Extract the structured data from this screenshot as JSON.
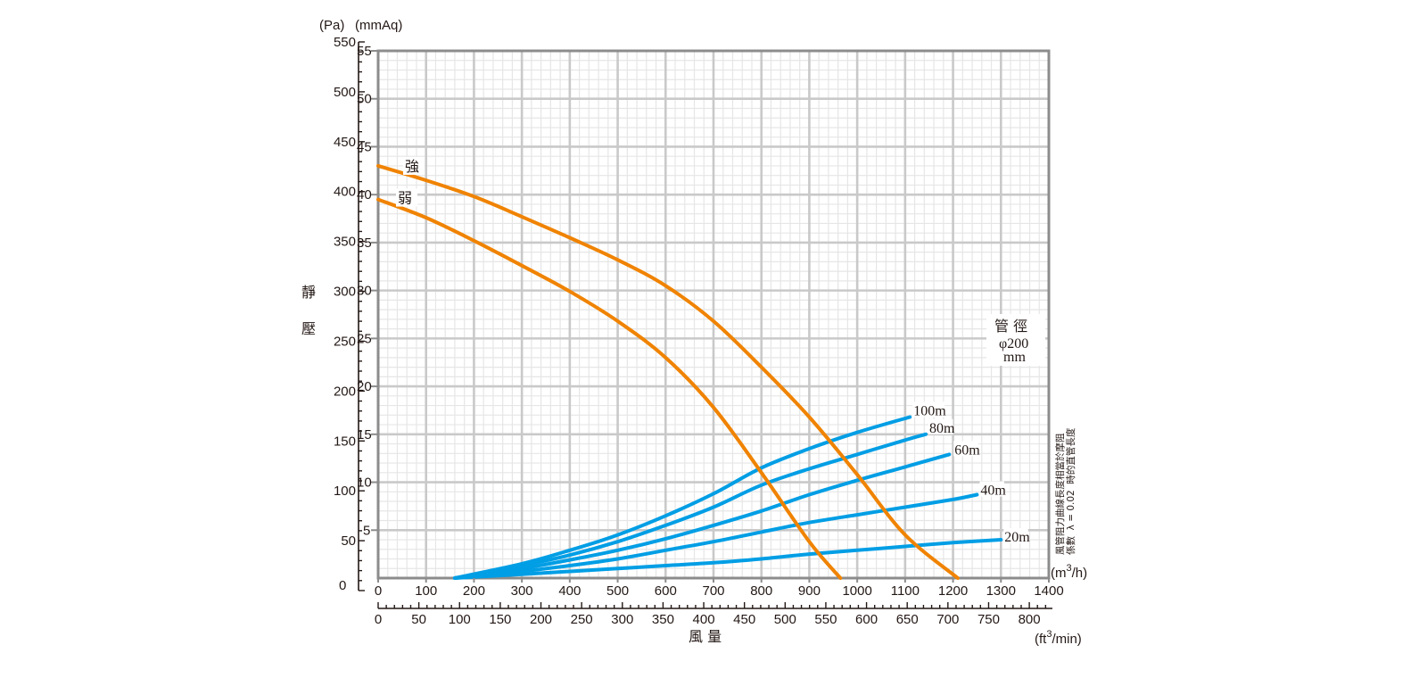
{
  "chart_data": {
    "type": "line",
    "title": "",
    "xlabel": "風 量",
    "ylabel": "靜 壓",
    "x_unit": "(m³/h)",
    "x2_unit": "(ft³/min)",
    "y_unit": "(mmAq)",
    "y2_unit": "(Pa)",
    "xlim": [
      0,
      1400
    ],
    "ylim": [
      0,
      55
    ],
    "x2lim": [
      0,
      824
    ],
    "y2lim": [
      0,
      550
    ],
    "grid": true,
    "x_ticks": [
      "0",
      "100",
      "200",
      "300",
      "400",
      "500",
      "600",
      "700",
      "800",
      "900",
      "1000",
      "1100",
      "1200",
      "1300",
      "1400"
    ],
    "x2_ticks": [
      "0",
      "50",
      "100",
      "150",
      "200",
      "250",
      "300",
      "350",
      "400",
      "450",
      "500",
      "550",
      "600",
      "650",
      "700",
      "750",
      "800"
    ],
    "y_ticks": [
      "0",
      "5",
      "10",
      "15",
      "20",
      "25",
      "30",
      "35",
      "40",
      "45",
      "50",
      "55"
    ],
    "y2_ticks": [
      "0",
      "50",
      "100",
      "150",
      "200",
      "250",
      "300",
      "350",
      "400",
      "450",
      "500",
      "550"
    ],
    "colors": {
      "fan_curve": "#f08300",
      "duct_curve": "#009ee5",
      "grid_major": "#c9c9c9",
      "grid_minor": "#e6e6e6",
      "frame": "#8c8c8c"
    },
    "fan_series": [
      {
        "name": "強",
        "x": [
          0,
          100,
          200,
          300,
          400,
          500,
          600,
          700,
          800,
          900,
          1000,
          1100,
          1210
        ],
        "y": [
          43.0,
          41.5,
          39.8,
          37.7,
          35.5,
          33.2,
          30.5,
          26.8,
          22.0,
          16.8,
          10.8,
          4.5,
          0
        ]
      },
      {
        "name": "弱",
        "x": [
          0,
          100,
          200,
          300,
          400,
          500,
          600,
          700,
          800,
          900,
          965
        ],
        "y": [
          39.5,
          37.6,
          35.2,
          32.6,
          29.9,
          26.8,
          23.0,
          17.8,
          11.0,
          3.8,
          0
        ]
      }
    ],
    "duct_series": [
      {
        "name": "100m",
        "x": [
          160,
          300,
          400,
          500,
          600,
          700,
          800,
          900,
          1000,
          1110
        ],
        "y": [
          0,
          1.5,
          2.9,
          4.5,
          6.5,
          8.8,
          11.5,
          13.5,
          15.2,
          16.8
        ]
      },
      {
        "name": "80m",
        "x": [
          160,
          300,
          400,
          500,
          600,
          700,
          800,
          900,
          1000,
          1100,
          1143
        ],
        "y": [
          0,
          1.3,
          2.4,
          3.8,
          5.5,
          7.4,
          9.7,
          11.4,
          12.9,
          14.4,
          15.0
        ]
      },
      {
        "name": "60m",
        "x": [
          160,
          300,
          400,
          500,
          600,
          700,
          800,
          900,
          1000,
          1100,
          1192
        ],
        "y": [
          0,
          1.0,
          1.9,
          2.9,
          4.1,
          5.5,
          7.0,
          8.7,
          10.2,
          11.6,
          12.9
        ]
      },
      {
        "name": "40m",
        "x": [
          160,
          300,
          400,
          500,
          600,
          700,
          800,
          900,
          1000,
          1100,
          1200,
          1250
        ],
        "y": [
          0,
          0.7,
          1.3,
          2.0,
          2.9,
          3.8,
          4.8,
          5.8,
          6.6,
          7.4,
          8.2,
          8.7
        ]
      },
      {
        "name": "20m",
        "x": [
          160,
          300,
          400,
          500,
          600,
          700,
          800,
          900,
          1000,
          1100,
          1200,
          1300
        ],
        "y": [
          0,
          0.4,
          0.7,
          1.0,
          1.3,
          1.6,
          2.0,
          2.5,
          2.9,
          3.3,
          3.7,
          4.0
        ]
      }
    ],
    "annotations": {
      "pipe_title": "管 徑",
      "pipe_size": "φ200",
      "pipe_unit": "mm",
      "note_line1": "風管阻力曲線長度相當於摩阻",
      "note_line2": "係數  λ = 0.02  時的直管長度"
    }
  }
}
